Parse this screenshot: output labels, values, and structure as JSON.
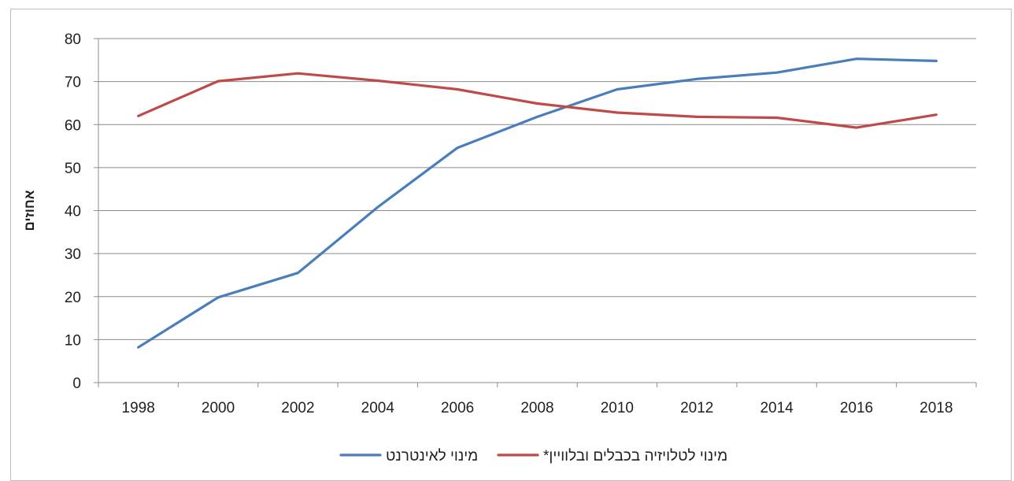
{
  "chart_data": {
    "type": "line",
    "title": "",
    "xlabel": "",
    "ylabel": "אחוזים",
    "x": [
      1998,
      2000,
      2002,
      2004,
      2006,
      2008,
      2010,
      2012,
      2014,
      2016,
      2018
    ],
    "x_tick_labels": [
      "1998",
      "2000",
      "2002",
      "2004",
      "2006",
      "2008",
      "2010",
      "2012",
      "2014",
      "2016",
      "2018"
    ],
    "y_tick_labels": [
      "0",
      "10",
      "20",
      "30",
      "40",
      "50",
      "60",
      "70",
      "80"
    ],
    "ylim": [
      0,
      80
    ],
    "y_step": 10,
    "grid": "horizontal",
    "legend_position": "bottom",
    "series": [
      {
        "name": "מינוי לאינטרנט",
        "color": "#4a7ebb",
        "values": [
          8.2,
          19.8,
          25.5,
          40.8,
          54.6,
          61.8,
          68.2,
          70.6,
          72.1,
          75.3,
          74.8
        ]
      },
      {
        "name": "מינוי לטלויזיה בכבלים ובלוויין*",
        "color": "#be4b48",
        "values": [
          62.0,
          70.1,
          71.9,
          70.2,
          68.2,
          64.9,
          62.8,
          61.8,
          61.6,
          59.3,
          62.3
        ]
      }
    ]
  }
}
